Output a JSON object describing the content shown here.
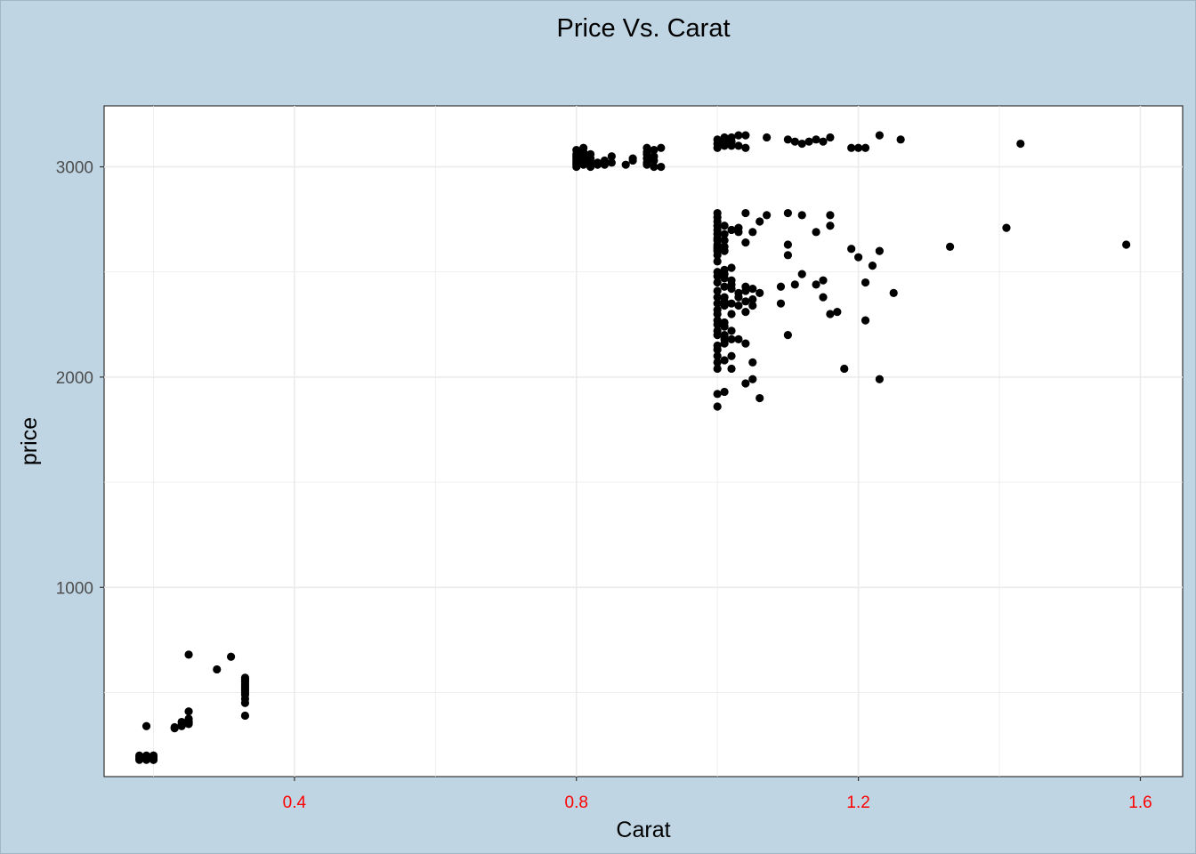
{
  "chart_data": {
    "type": "scatter",
    "title": "Price Vs. Carat",
    "xlabel": "Carat",
    "ylabel": "price",
    "xlim": [
      0.13,
      1.66
    ],
    "ylim": [
      100,
      3290
    ],
    "x_major_ticks": [
      0.4,
      0.8,
      1.2,
      1.6
    ],
    "x_tick_labels": [
      "0.4",
      "0.8",
      "1.2",
      "1.6"
    ],
    "x_minor_ticks": [
      0.2,
      0.6,
      1.0,
      1.4
    ],
    "y_major_ticks": [
      1000,
      2000,
      3000
    ],
    "y_tick_labels": [
      "1000",
      "2000",
      "3000"
    ],
    "y_minor_ticks": [
      500,
      1500,
      2500
    ],
    "grid": true,
    "legend": "none",
    "colors": {
      "figure_background": "#bfd5e4",
      "panel_background": "#ffffff",
      "grid": "#ebebeb",
      "points": "#000000",
      "x_tick_labels": "#ff0000",
      "y_tick_labels": "#4d4d4d"
    },
    "x": [
      0.18,
      0.18,
      0.18,
      0.19,
      0.19,
      0.19,
      0.2,
      0.2,
      0.2,
      0.2,
      0.2,
      0.2,
      0.19,
      0.23,
      0.23,
      0.24,
      0.24,
      0.24,
      0.25,
      0.25,
      0.25,
      0.25,
      0.25,
      0.25,
      0.29,
      0.31,
      0.25,
      0.33,
      0.33,
      0.33,
      0.33,
      0.33,
      0.33,
      0.33,
      0.33,
      0.33,
      0.33,
      0.33,
      0.33,
      0.8,
      0.8,
      0.8,
      0.8,
      0.8,
      0.8,
      0.8,
      0.8,
      0.81,
      0.81,
      0.81,
      0.81,
      0.81,
      0.82,
      0.82,
      0.82,
      0.82,
      0.82,
      0.83,
      0.83,
      0.84,
      0.84,
      0.85,
      0.85,
      0.87,
      0.88,
      0.88,
      0.9,
      0.9,
      0.9,
      0.9,
      0.9,
      0.9,
      0.91,
      0.91,
      0.91,
      0.91,
      0.92,
      0.92,
      1.0,
      1.0,
      1.0,
      1.01,
      1.01,
      1.01,
      1.02,
      1.02,
      1.02,
      1.03,
      1.03,
      1.04,
      1.04,
      1.07,
      1.1,
      1.11,
      1.12,
      1.13,
      1.14,
      1.15,
      1.16,
      1.19,
      1.2,
      1.21,
      1.23,
      1.26,
      1.43,
      1.0,
      1.0,
      1.0,
      1.0,
      1.0,
      1.0,
      1.0,
      1.0,
      1.0,
      1.0,
      1.0,
      1.0,
      1.0,
      1.0,
      1.0,
      1.0,
      1.0,
      1.0,
      1.0,
      1.0,
      1.0,
      1.0,
      1.0,
      1.0,
      1.0,
      1.0,
      1.0,
      1.0,
      1.0,
      1.0,
      1.0,
      1.0,
      1.0,
      1.01,
      1.01,
      1.01,
      1.01,
      1.01,
      1.01,
      1.01,
      1.01,
      1.01,
      1.01,
      1.01,
      1.01,
      1.01,
      1.01,
      1.01,
      1.01,
      1.01,
      1.01,
      1.01,
      1.02,
      1.02,
      1.02,
      1.02,
      1.02,
      1.02,
      1.02,
      1.02,
      1.02,
      1.02,
      1.02,
      1.03,
      1.03,
      1.03,
      1.03,
      1.03,
      1.03,
      1.04,
      1.04,
      1.04,
      1.04,
      1.04,
      1.04,
      1.04,
      1.04,
      1.05,
      1.05,
      1.05,
      1.05,
      1.05,
      1.05,
      1.06,
      1.06,
      1.06,
      1.07,
      1.09,
      1.09,
      1.1,
      1.1,
      1.1,
      1.1,
      1.11,
      1.12,
      1.12,
      1.14,
      1.14,
      1.15,
      1.15,
      1.16,
      1.16,
      1.16,
      1.17,
      1.18,
      1.19,
      1.2,
      1.21,
      1.21,
      1.22,
      1.23,
      1.23,
      1.25,
      1.33,
      1.41,
      1.58
    ],
    "y": [
      180,
      190,
      200,
      180,
      190,
      200,
      180,
      190,
      200,
      180,
      190,
      200,
      340,
      330,
      335,
      340,
      345,
      360,
      350,
      355,
      360,
      375,
      410,
      680,
      610,
      670,
      360,
      390,
      450,
      470,
      490,
      500,
      510,
      520,
      530,
      540,
      550,
      560,
      570,
      3000,
      3010,
      3020,
      3030,
      3040,
      3050,
      3060,
      3080,
      3010,
      3030,
      3050,
      3070,
      3090,
      3000,
      3010,
      3020,
      3040,
      3060,
      3010,
      3020,
      3010,
      3030,
      3050,
      3020,
      3010,
      3030,
      3040,
      3010,
      3020,
      3040,
      3060,
      3070,
      3090,
      3000,
      3030,
      3050,
      3080,
      3000,
      3090,
      3090,
      3110,
      3130,
      3100,
      3120,
      3140,
      3100,
      3120,
      3140,
      3100,
      3150,
      3090,
      3150,
      3140,
      3130,
      3120,
      3110,
      3120,
      3130,
      3120,
      3140,
      3090,
      3090,
      3090,
      3150,
      3130,
      3110,
      1860,
      1920,
      2040,
      2070,
      2100,
      2130,
      2150,
      2200,
      2220,
      2250,
      2270,
      2300,
      2320,
      2350,
      2380,
      2410,
      2450,
      2480,
      2500,
      2550,
      2580,
      2600,
      2610,
      2630,
      2650,
      2660,
      2680,
      2700,
      2720,
      2740,
      2760,
      2780,
      2620,
      1930,
      2080,
      2160,
      2180,
      2200,
      2240,
      2260,
      2340,
      2360,
      2380,
      2430,
      2470,
      2490,
      2510,
      2600,
      2620,
      2650,
      2680,
      2720,
      2040,
      2100,
      2180,
      2220,
      2300,
      2350,
      2420,
      2440,
      2460,
      2520,
      2700,
      2180,
      2340,
      2380,
      2400,
      2690,
      2710,
      1970,
      2160,
      2310,
      2360,
      2410,
      2430,
      2640,
      2780,
      1990,
      2070,
      2340,
      2370,
      2420,
      2690,
      1900,
      2400,
      2740,
      2770,
      2350,
      2430,
      2200,
      2580,
      2630,
      2780,
      2440,
      2490,
      2770,
      2440,
      2690,
      2380,
      2460,
      2300,
      2720,
      2770,
      2310,
      2040,
      2610,
      2570,
      2450,
      2270,
      2530,
      1990,
      2600,
      2400,
      2620,
      2710,
      2630
    ]
  }
}
